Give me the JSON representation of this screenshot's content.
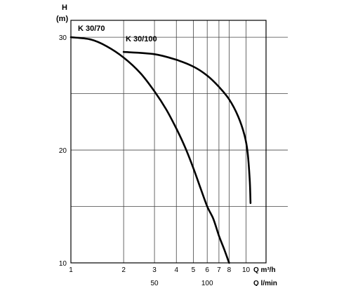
{
  "chart_data": {
    "type": "line",
    "title": "",
    "y_axis": {
      "label_top": "H",
      "label_unit": "(m)",
      "ticks": [
        10,
        20,
        30
      ],
      "range": [
        10,
        31.5
      ],
      "scale": "linear"
    },
    "x_axis": {
      "ticks": [
        1,
        2,
        3,
        4,
        5,
        6,
        7,
        8,
        10
      ],
      "unit_label": "Q m³/h",
      "range": [
        1,
        13
      ],
      "scale": "log"
    },
    "x_axis_secondary": {
      "ticks": [
        50,
        100
      ],
      "unit_label": "Q l/min"
    },
    "grid": true,
    "series": [
      {
        "name": "K 30/70",
        "x": [
          1.0,
          1.3,
          1.6,
          2.0,
          2.5,
          3.0,
          3.5,
          4.0,
          4.5,
          5.0,
          5.5,
          6.0,
          6.5,
          7.0,
          7.5,
          8.0
        ],
        "y": [
          30.0,
          29.8,
          29.2,
          28.2,
          26.8,
          25.2,
          23.6,
          21.9,
          20.2,
          18.4,
          16.6,
          15.0,
          13.9,
          12.4,
          11.2,
          10.0
        ]
      },
      {
        "name": "K 30/100",
        "x": [
          2.0,
          3.0,
          4.0,
          5.0,
          6.0,
          7.0,
          8.0,
          9.0,
          9.8,
          10.2,
          10.5,
          10.6
        ],
        "y": [
          28.7,
          28.5,
          28.0,
          27.4,
          26.6,
          25.6,
          24.5,
          23.0,
          21.3,
          19.8,
          17.2,
          15.3
        ]
      }
    ]
  }
}
